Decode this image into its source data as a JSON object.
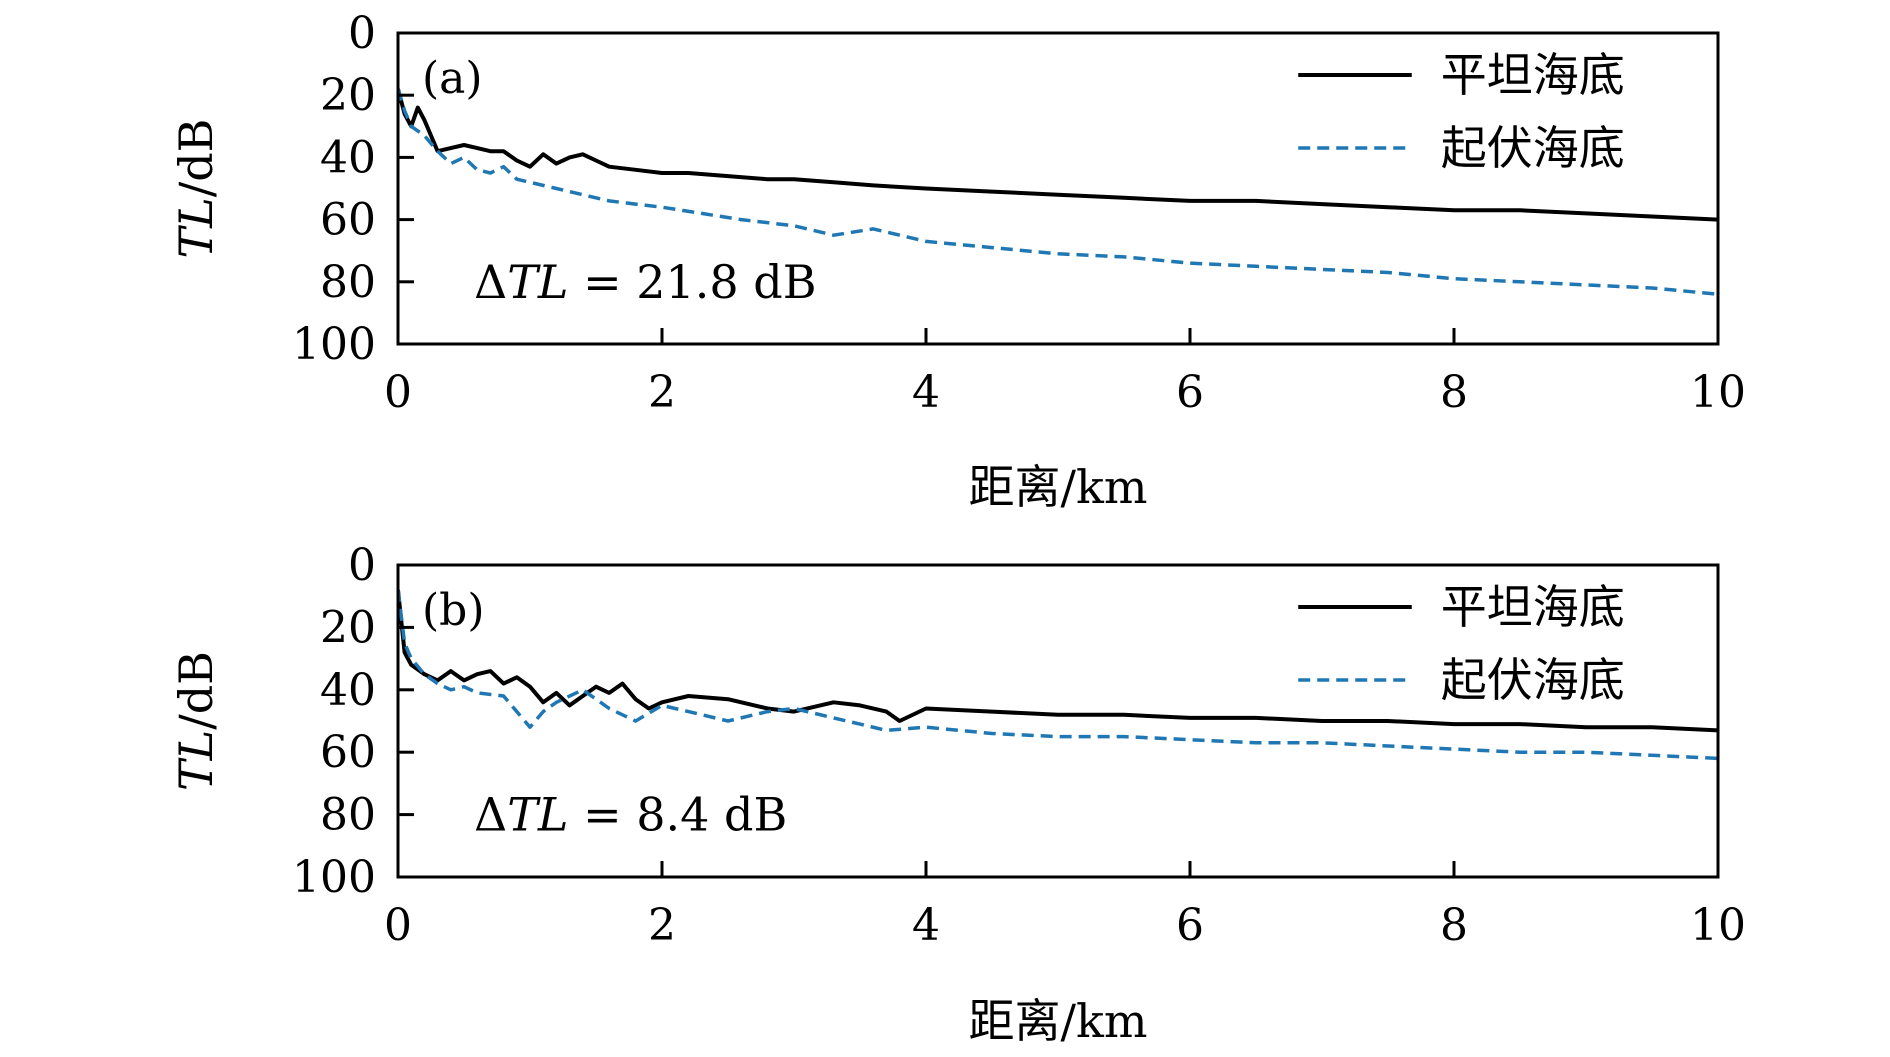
{
  "chart_data": [
    {
      "type": "line",
      "panel_label": "(a)",
      "xlabel": "距离/km",
      "ylabel_main": "TL",
      "ylabel_unit": "/dB",
      "xlim": [
        0,
        10
      ],
      "ylim": [
        0,
        100
      ],
      "y_inverted": true,
      "xticks": [
        "0",
        "2",
        "4",
        "6",
        "8",
        "10"
      ],
      "yticks": [
        "0",
        "20",
        "40",
        "60",
        "80",
        "100"
      ],
      "annotation": {
        "delta": "Δ",
        "term": "TL",
        "rest": " = 21.8 dB"
      },
      "legend_position": "top-right",
      "series": [
        {
          "name": "平坦海底",
          "style": "solid",
          "color": "#000000",
          "x": [
            0,
            0.05,
            0.1,
            0.15,
            0.2,
            0.25,
            0.3,
            0.4,
            0.5,
            0.6,
            0.7,
            0.8,
            0.9,
            1.0,
            1.1,
            1.2,
            1.3,
            1.4,
            1.5,
            1.6,
            1.8,
            2.0,
            2.2,
            2.5,
            2.8,
            3.0,
            3.3,
            3.6,
            4.0,
            4.5,
            5.0,
            5.5,
            6.0,
            6.5,
            7.0,
            7.5,
            8.0,
            8.5,
            9.0,
            9.5,
            10.0
          ],
          "y": [
            18,
            26,
            30,
            24,
            28,
            33,
            38,
            37,
            36,
            37,
            38,
            38,
            41,
            43,
            39,
            42,
            40,
            39,
            41,
            43,
            44,
            45,
            45,
            46,
            47,
            47,
            48,
            49,
            50,
            51,
            52,
            53,
            54,
            54,
            55,
            56,
            57,
            57,
            58,
            59,
            60
          ]
        },
        {
          "name": "起伏海底",
          "style": "dashed",
          "color": "#1f77b4",
          "x": [
            0,
            0.05,
            0.1,
            0.2,
            0.3,
            0.4,
            0.5,
            0.6,
            0.7,
            0.8,
            0.9,
            1.0,
            1.2,
            1.4,
            1.6,
            1.8,
            2.0,
            2.3,
            2.6,
            3.0,
            3.3,
            3.6,
            4.0,
            4.5,
            5.0,
            5.5,
            6.0,
            6.5,
            7.0,
            7.5,
            8.0,
            8.5,
            9.0,
            9.5,
            10.0
          ],
          "y": [
            18,
            25,
            30,
            33,
            38,
            42,
            40,
            44,
            45,
            43,
            47,
            48,
            50,
            52,
            54,
            55,
            56,
            58,
            60,
            62,
            65,
            63,
            67,
            69,
            71,
            72,
            74,
            75,
            76,
            77,
            79,
            80,
            81,
            82,
            84
          ]
        }
      ]
    },
    {
      "type": "line",
      "panel_label": "(b)",
      "xlabel": "距离/km",
      "ylabel_main": "TL",
      "ylabel_unit": "/dB",
      "xlim": [
        0,
        10
      ],
      "ylim": [
        0,
        100
      ],
      "y_inverted": true,
      "xticks": [
        "0",
        "2",
        "4",
        "6",
        "8",
        "10"
      ],
      "yticks": [
        "0",
        "20",
        "40",
        "60",
        "80",
        "100"
      ],
      "annotation": {
        "delta": "Δ",
        "term": "TL",
        "rest": " = 8.4 dB"
      },
      "legend_position": "top-right",
      "series": [
        {
          "name": "平坦海底",
          "style": "solid",
          "color": "#000000",
          "x": [
            0,
            0.05,
            0.1,
            0.2,
            0.3,
            0.4,
            0.5,
            0.6,
            0.7,
            0.8,
            0.9,
            1.0,
            1.1,
            1.2,
            1.3,
            1.4,
            1.5,
            1.6,
            1.7,
            1.8,
            1.9,
            2.0,
            2.2,
            2.5,
            2.8,
            3.0,
            3.3,
            3.5,
            3.7,
            3.8,
            4.0,
            4.5,
            5.0,
            5.5,
            6.0,
            6.5,
            7.0,
            7.5,
            8.0,
            8.5,
            9.0,
            9.5,
            10.0
          ],
          "y": [
            8,
            28,
            32,
            35,
            37,
            34,
            37,
            35,
            34,
            38,
            36,
            39,
            44,
            41,
            45,
            42,
            39,
            41,
            38,
            43,
            46,
            44,
            42,
            43,
            46,
            47,
            44,
            45,
            47,
            50,
            46,
            47,
            48,
            48,
            49,
            49,
            50,
            50,
            51,
            51,
            52,
            52,
            53
          ]
        },
        {
          "name": "起伏海底",
          "style": "dashed",
          "color": "#1f77b4",
          "x": [
            0,
            0.05,
            0.1,
            0.2,
            0.3,
            0.4,
            0.5,
            0.6,
            0.8,
            1.0,
            1.1,
            1.2,
            1.4,
            1.6,
            1.8,
            2.0,
            2.2,
            2.5,
            2.8,
            3.0,
            3.3,
            3.5,
            3.7,
            4.0,
            4.5,
            5.0,
            5.5,
            6.0,
            6.5,
            7.0,
            7.5,
            8.0,
            8.5,
            9.0,
            9.5,
            10.0
          ],
          "y": [
            8,
            25,
            30,
            35,
            38,
            40,
            39,
            41,
            42,
            52,
            47,
            44,
            40,
            46,
            50,
            45,
            47,
            50,
            47,
            46,
            49,
            51,
            53,
            52,
            54,
            55,
            55,
            56,
            57,
            57,
            58,
            59,
            60,
            60,
            61,
            62
          ]
        }
      ]
    }
  ]
}
